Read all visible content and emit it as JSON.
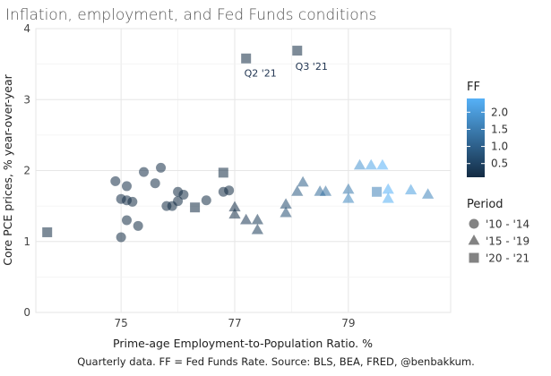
{
  "chart_data": {
    "type": "scatter",
    "title": "Inflation, employment, and Fed Funds conditions",
    "xlabel": "Prime-age Employment-to-Population Ratio. %",
    "ylabel": "Core PCE prices, % year-over-year",
    "caption": "Quarterly data. FF = Fed Funds Rate. Source: BLS, BEA, FRED, @benbakkum.",
    "xlim": [
      73.5,
      80.8
    ],
    "ylim": [
      0,
      4
    ],
    "x_ticks": [
      75,
      77,
      79
    ],
    "x_tick_labels": [
      "75",
      "77",
      "79"
    ],
    "y_ticks": [
      0,
      1,
      2,
      3,
      4
    ],
    "y_tick_labels": [
      "0",
      "1",
      "2",
      "3",
      "4"
    ],
    "grid": true,
    "legend_placement": "right",
    "color_legend": {
      "title": "FF",
      "ticks": [
        0.5,
        1.0,
        1.5,
        2.0
      ],
      "tick_labels": [
        "0.5",
        "1.0",
        "1.5",
        "2.0"
      ],
      "range": [
        0.1,
        2.4
      ],
      "low_color": "#132b43",
      "high_color": "#56b1f7"
    },
    "shape_legend": {
      "title": "Period",
      "entries": [
        {
          "label": "'10 - '14",
          "shape": "circle"
        },
        {
          "label": "'15 - '19",
          "shape": "triangle"
        },
        {
          "label": "'20 - '21",
          "shape": "square"
        }
      ]
    },
    "annotations": [
      {
        "text": "Q2 '21",
        "x": 77.2,
        "y": 3.6
      },
      {
        "text": "Q3 '21",
        "x": 78.1,
        "y": 3.7
      }
    ],
    "series": [
      {
        "name": "'10 - '14",
        "shape": "circle",
        "points": [
          {
            "x": 74.9,
            "y": 1.85,
            "ff": 0.15
          },
          {
            "x": 75.0,
            "y": 1.6,
            "ff": 0.15
          },
          {
            "x": 75.1,
            "y": 1.78,
            "ff": 0.15
          },
          {
            "x": 75.1,
            "y": 1.58,
            "ff": 0.15
          },
          {
            "x": 75.2,
            "y": 1.56,
            "ff": 0.1
          },
          {
            "x": 75.0,
            "y": 1.06,
            "ff": 0.1
          },
          {
            "x": 75.1,
            "y": 1.3,
            "ff": 0.1
          },
          {
            "x": 75.3,
            "y": 1.22,
            "ff": 0.1
          },
          {
            "x": 75.4,
            "y": 1.98,
            "ff": 0.15
          },
          {
            "x": 75.6,
            "y": 1.82,
            "ff": 0.15
          },
          {
            "x": 75.7,
            "y": 2.04,
            "ff": 0.15
          },
          {
            "x": 75.8,
            "y": 1.5,
            "ff": 0.1
          },
          {
            "x": 75.9,
            "y": 1.5,
            "ff": 0.1
          },
          {
            "x": 76.0,
            "y": 1.57,
            "ff": 0.1
          },
          {
            "x": 76.0,
            "y": 1.7,
            "ff": 0.09
          },
          {
            "x": 76.1,
            "y": 1.66,
            "ff": 0.1
          },
          {
            "x": 76.5,
            "y": 1.58,
            "ff": 0.1
          },
          {
            "x": 76.8,
            "y": 1.7,
            "ff": 0.1
          },
          {
            "x": 76.9,
            "y": 1.72,
            "ff": 0.1
          }
        ]
      },
      {
        "name": "'15 - '19",
        "shape": "triangle",
        "points": [
          {
            "x": 77.0,
            "y": 1.48,
            "ff": 0.15
          },
          {
            "x": 77.0,
            "y": 1.38,
            "ff": 0.2
          },
          {
            "x": 77.2,
            "y": 1.3,
            "ff": 0.3
          },
          {
            "x": 77.4,
            "y": 1.3,
            "ff": 0.35
          },
          {
            "x": 77.4,
            "y": 1.16,
            "ff": 0.4
          },
          {
            "x": 77.9,
            "y": 1.52,
            "ff": 0.65
          },
          {
            "x": 77.9,
            "y": 1.4,
            "ff": 0.7
          },
          {
            "x": 78.1,
            "y": 1.7,
            "ff": 0.9
          },
          {
            "x": 78.2,
            "y": 1.83,
            "ff": 1.0
          },
          {
            "x": 78.5,
            "y": 1.7,
            "ff": 1.2
          },
          {
            "x": 78.6,
            "y": 1.7,
            "ff": 1.3
          },
          {
            "x": 79.0,
            "y": 1.73,
            "ff": 1.45
          },
          {
            "x": 79.0,
            "y": 1.6,
            "ff": 1.7
          },
          {
            "x": 79.2,
            "y": 2.07,
            "ff": 1.9
          },
          {
            "x": 79.4,
            "y": 2.07,
            "ff": 2.2
          },
          {
            "x": 79.6,
            "y": 2.07,
            "ff": 2.4
          },
          {
            "x": 79.7,
            "y": 1.73,
            "ff": 2.4
          },
          {
            "x": 79.7,
            "y": 1.6,
            "ff": 2.35
          },
          {
            "x": 80.1,
            "y": 1.72,
            "ff": 2.1
          },
          {
            "x": 80.4,
            "y": 1.66,
            "ff": 1.65
          }
        ]
      },
      {
        "name": "'20 - '21",
        "shape": "square",
        "points": [
          {
            "x": 73.7,
            "y": 1.13,
            "ff": 0.1
          },
          {
            "x": 76.3,
            "y": 1.48,
            "ff": 0.1
          },
          {
            "x": 76.8,
            "y": 1.97,
            "ff": 0.1
          },
          {
            "x": 77.2,
            "y": 3.58,
            "ff": 0.1
          },
          {
            "x": 78.1,
            "y": 3.69,
            "ff": 0.1
          },
          {
            "x": 79.5,
            "y": 1.7,
            "ff": 1.6
          }
        ]
      }
    ]
  }
}
